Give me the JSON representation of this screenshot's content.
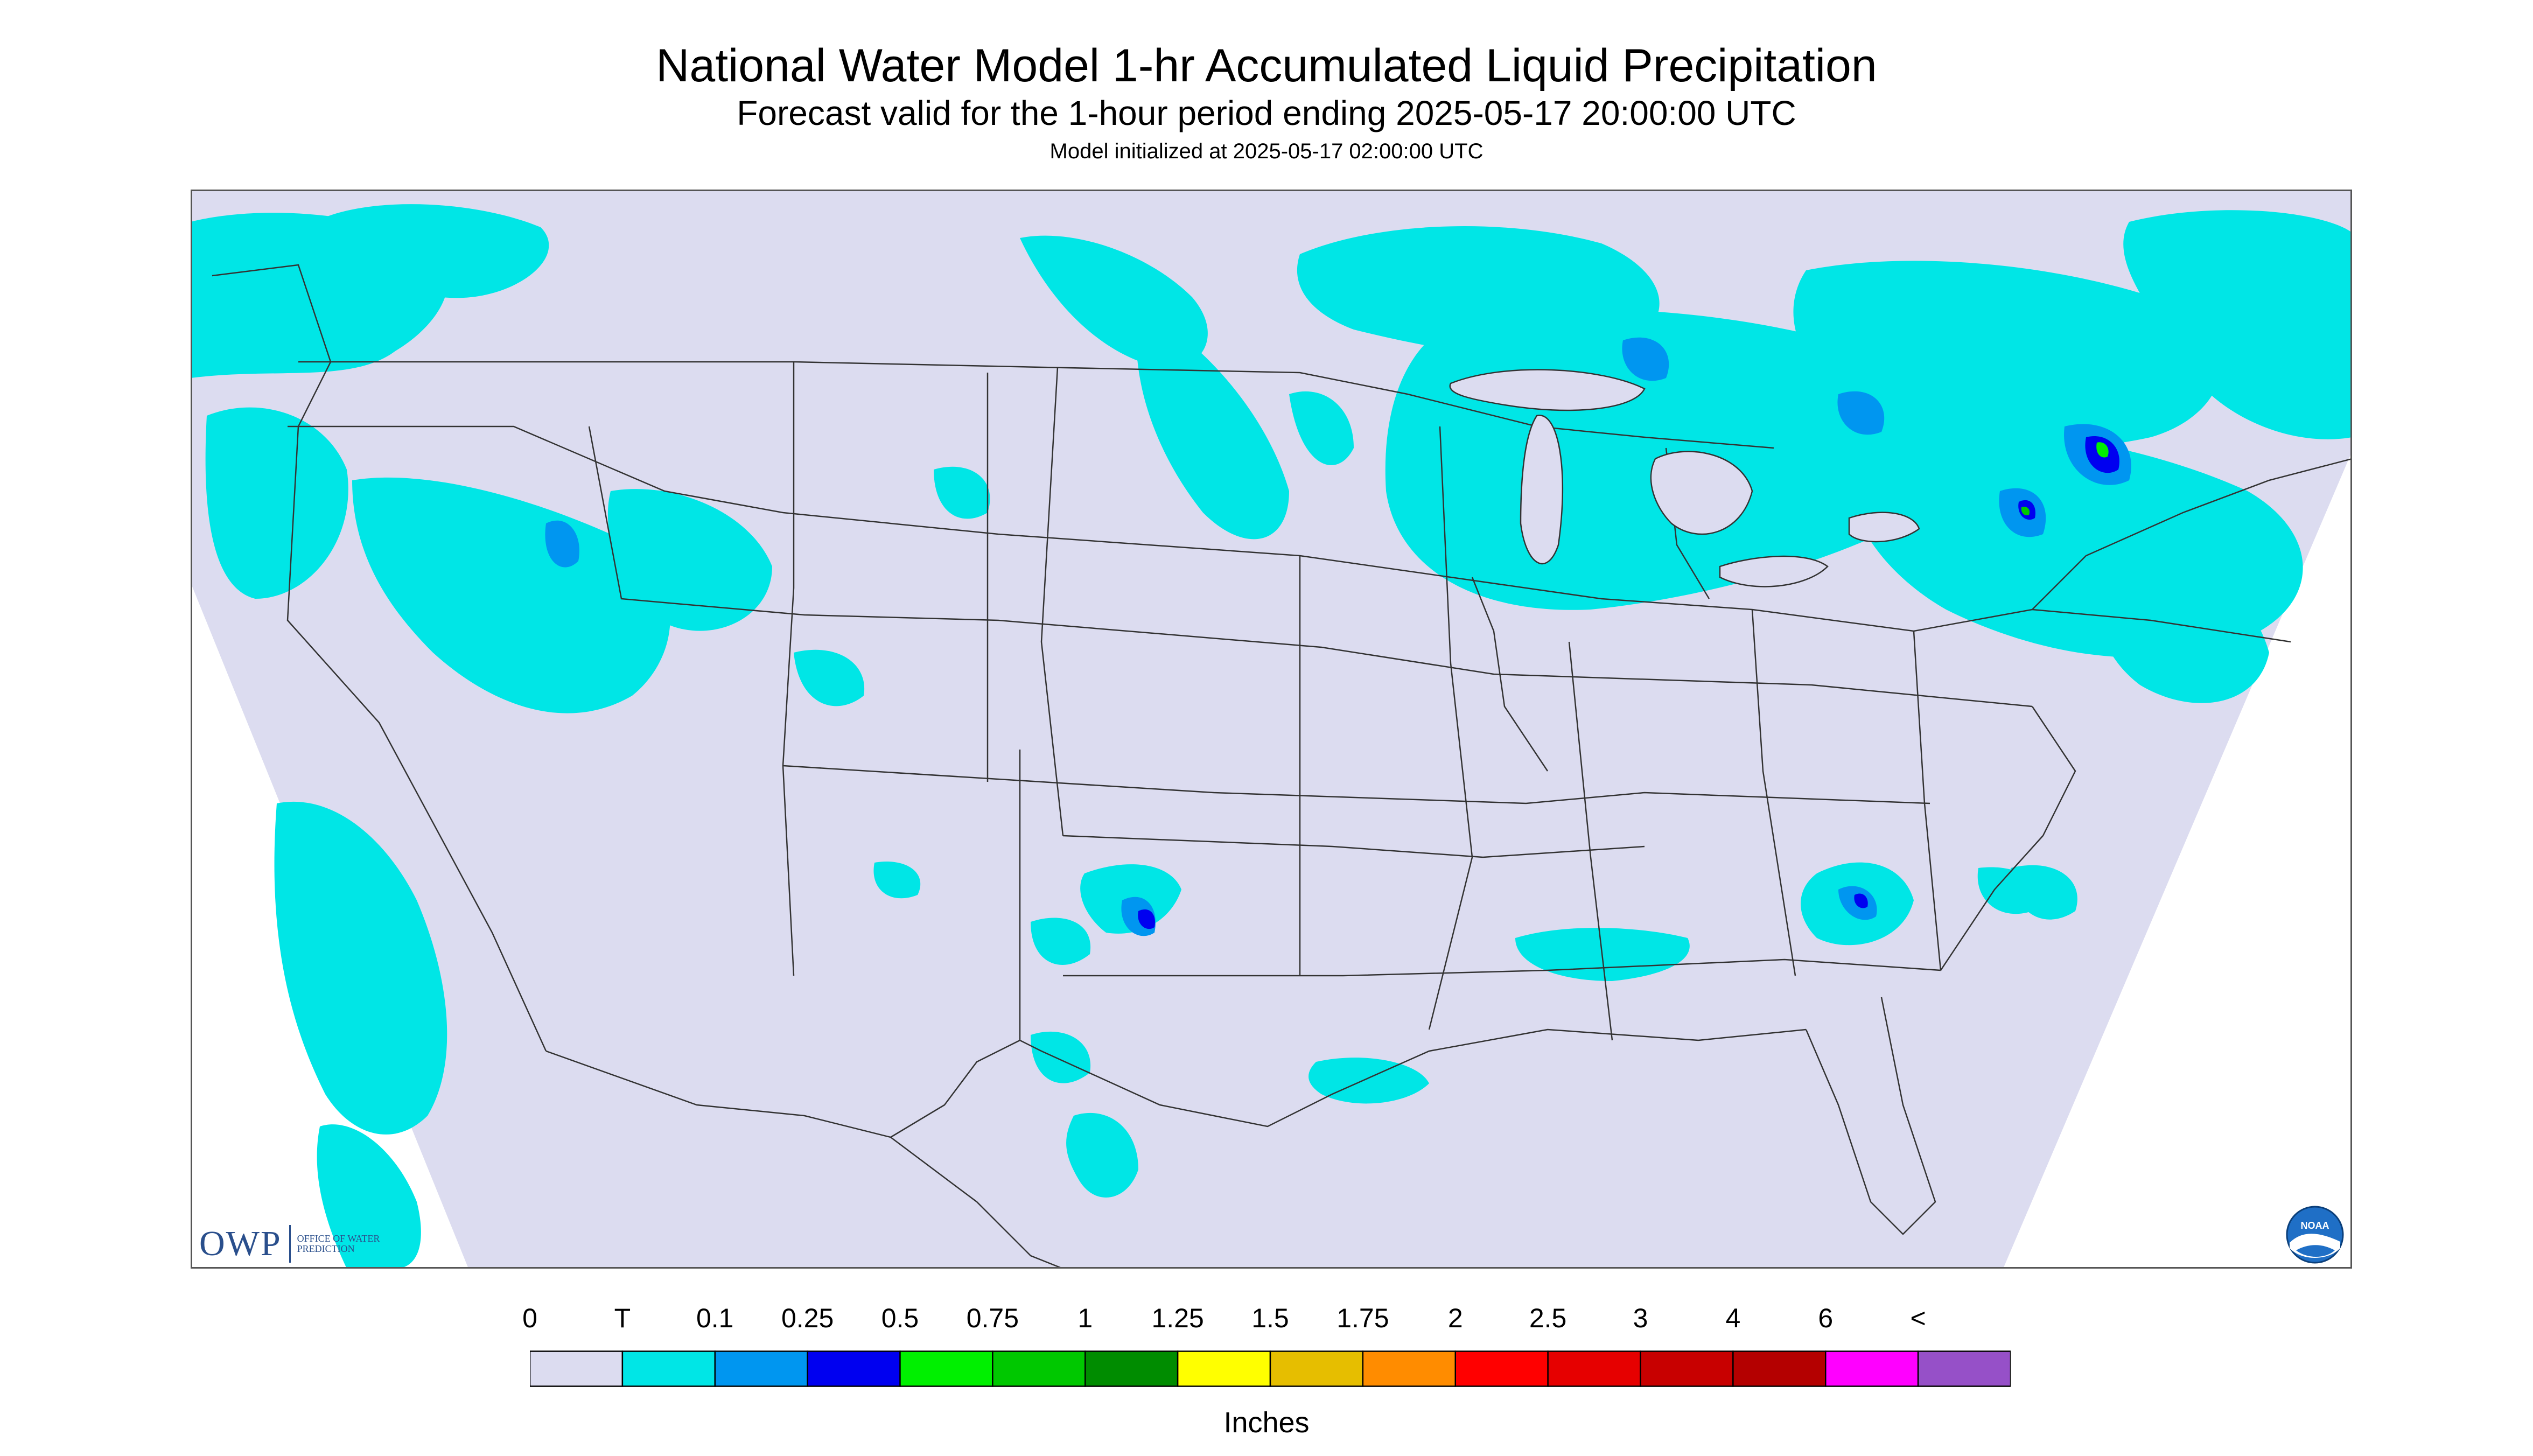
{
  "header": {
    "title": "National Water Model 1-hr Accumulated Liquid Precipitation",
    "subtitle": "Forecast valid for the 1-hour period ending 2025-05-17 20:00:00 UTC",
    "init_note": "Model initialized at 2025-05-17 02:00:00 UTC"
  },
  "map": {
    "region": "CONUS",
    "background_color": "#dcdcf0",
    "outside_domain_color": "#ffffff",
    "state_line_color": "#333333",
    "icons": [
      "state-boundary-lines",
      "precipitation-field"
    ]
  },
  "legend": {
    "labels": [
      "0",
      "T",
      "0.1",
      "0.25",
      "0.5",
      "0.75",
      "1",
      "1.25",
      "1.5",
      "1.75",
      "2",
      "2.5",
      "3",
      "4",
      "6",
      "<"
    ],
    "colors": [
      "#dcdcf0",
      "#00e6e6",
      "#0096f0",
      "#0000f0",
      "#00f000",
      "#00c800",
      "#008c00",
      "#ffff00",
      "#e6be00",
      "#ff8c00",
      "#ff0000",
      "#e60000",
      "#c80000",
      "#b40000",
      "#ff00ff",
      "#9650c8"
    ],
    "unit": "Inches"
  },
  "branding": {
    "owp_logo_text": "OWP",
    "owp_tagline": "OFFICE OF WATER PREDICTION",
    "noaa_logo_text": "NOAA",
    "icons": [
      "owp-logo-icon",
      "noaa-logo-icon"
    ]
  }
}
